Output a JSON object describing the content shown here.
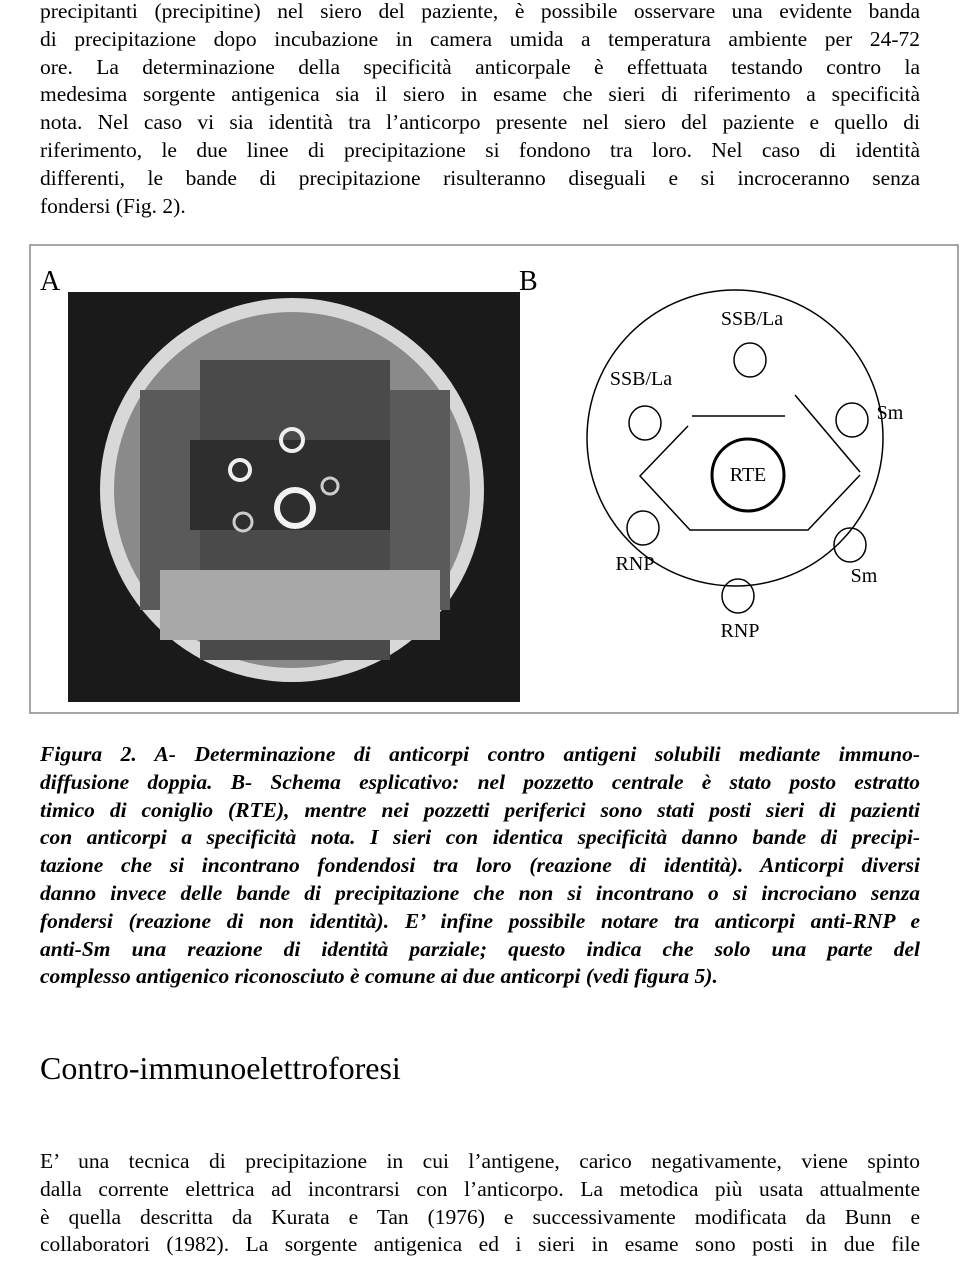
{
  "paragraph_1": {
    "lines": [
      "precipitanti (precipitine) nel siero del paziente, è possibile osservare una evidente banda",
      "di precipitazione dopo incubazione in camera umida a temperatura ambiente per 24-72",
      "ore. La determinazione della specificità anticorpale è effettuata testando contro la",
      "medesima sorgente antigenica sia il siero in esame che sieri di riferimento a specificità",
      "nota. Nel caso vi sia identità tra l’anticorpo presente nel siero del paziente e quello di",
      "riferimento, le due linee di precipitazione si fondono tra loro. Nel caso di identità",
      "differenti, le bande di precipitazione risulteranno diseguali e si incroceranno senza",
      "fondersi (Fig. 2)."
    ]
  },
  "figure": {
    "panel_a": "A",
    "panel_b": "B",
    "labels": [
      "SSB/La",
      "SSB/La",
      "Sm",
      "RTE",
      "RNP",
      "Sm",
      "RNP"
    ]
  },
  "caption": {
    "lines": [
      "Figura 2. A- Determinazione di anticorpi contro antigeni solubili mediante immuno-",
      "diffusione doppia. B- Schema esplicativo: nel pozzetto centrale è stato posto estratto",
      "timico di coniglio (RTE), mentre nei pozzetti periferici sono stati posti sieri di pazienti",
      "con anticorpi a specificità nota. I sieri con identica specificità danno bande di precipi-",
      "tazione che si incontrano fondendosi tra loro (reazione di identità). Anticorpi diversi",
      "danno invece delle bande di precipitazione che non si incontrano o si incrociano senza",
      "fondersi (reazione di non identità). E’ infine possibile notare tra anticorpi anti-RNP e",
      "anti-Sm una reazione di identità parziale; questo indica che solo una parte del",
      "complesso antigenico riconosciuto è comune ai due anticorpi (vedi figura 5)."
    ]
  },
  "heading": "Contro-immunoelettroforesi",
  "paragraph_2": {
    "lines": [
      "E’ una tecnica di precipitazione in cui l’antigene, carico negativamente, viene spinto",
      "dalla corrente elettrica ad incontrarsi con l’anticorpo. La metodica più usata attualmente",
      "è quella descritta da Kurata e Tan (1976) e successivamente modificata da Bunn e",
      "collaboratori (1982). La sorgente antigenica ed i sieri in esame sono posti in due file"
    ]
  }
}
